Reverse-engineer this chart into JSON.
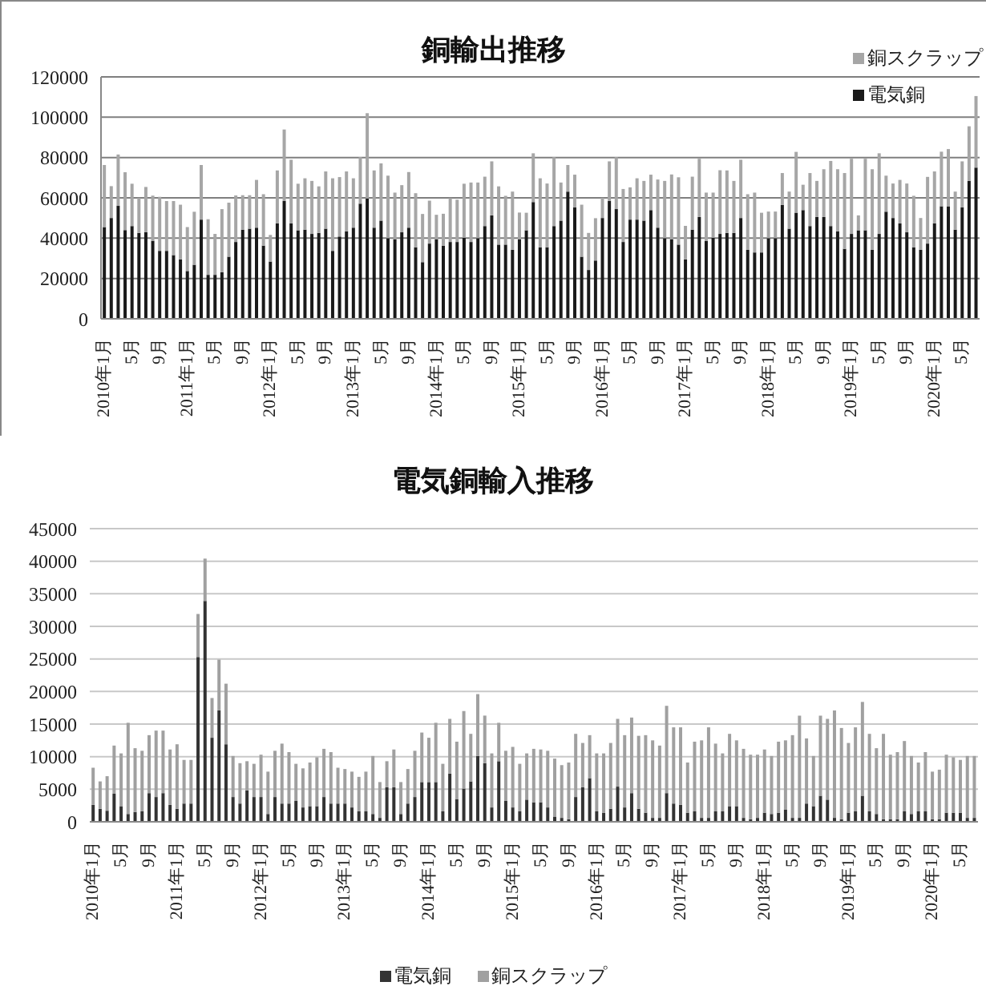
{
  "chart_data": [
    {
      "type": "bar",
      "title": "銅輸出推移",
      "stacked": true,
      "grid": "y",
      "legend": "top right",
      "ylim": [
        0,
        120000
      ],
      "yticks": [
        0,
        20000,
        40000,
        60000,
        80000,
        100000,
        120000
      ],
      "categories": [
        "2010年1月",
        null,
        null,
        null,
        "5月",
        null,
        null,
        null,
        "9月",
        null,
        null,
        null,
        "2011年1月",
        null,
        null,
        null,
        "5月",
        null,
        null,
        null,
        "9月",
        null,
        null,
        null,
        "2012年1月",
        null,
        null,
        null,
        "5月",
        null,
        null,
        null,
        "9月",
        null,
        null,
        null,
        "2013年1月",
        null,
        null,
        null,
        "5月",
        null,
        null,
        null,
        "9月",
        null,
        null,
        null,
        "2014年1月",
        null,
        null,
        null,
        "5月",
        null,
        null,
        null,
        "9月",
        null,
        null,
        null,
        "2015年1月",
        null,
        null,
        null,
        "5月",
        null,
        null,
        null,
        "9月",
        null,
        null,
        null,
        "2016年1月",
        null,
        null,
        null,
        "5月",
        null,
        null,
        null,
        "9月",
        null,
        null,
        null,
        "2017年1月",
        null,
        null,
        null,
        "5月",
        null,
        null,
        null,
        "9月",
        null,
        null,
        null,
        "2018年1月",
        null,
        null,
        null,
        "5月",
        null,
        null,
        null,
        "9月",
        null,
        null,
        null,
        "2019年1月",
        null,
        null,
        null,
        "5月",
        null,
        null,
        null,
        "9月",
        null,
        null,
        null,
        "2020年1月",
        null,
        null,
        null,
        "5月",
        null,
        null
      ],
      "series": [
        {
          "name": "電気銅",
          "color": "#1a1a1a",
          "values": [
            45500,
            50000,
            56000,
            44000,
            46000,
            42600,
            43000,
            38700,
            33700,
            33700,
            31600,
            29500,
            23700,
            26800,
            49200,
            21800,
            21800,
            23100,
            30800,
            38100,
            44200,
            44700,
            45200,
            36300,
            28400,
            47300,
            58400,
            47300,
            43900,
            44200,
            42100,
            42600,
            44700,
            33700,
            40800,
            43400,
            45200,
            57100,
            59700,
            45200,
            48700,
            40000,
            39500,
            42900,
            45200,
            35500,
            28100,
            37300,
            39500,
            36300,
            38100,
            38100,
            40200,
            38100,
            40000,
            46000,
            51300,
            36800,
            36800,
            34200,
            39500,
            43900,
            57900,
            35500,
            35500,
            46000,
            48700,
            63100,
            55200,
            30800,
            24200,
            28900,
            50000,
            58400,
            54400,
            38100,
            49200,
            49200,
            48700,
            53900,
            45200,
            40000,
            39500,
            36800,
            29500,
            44200,
            50500,
            38700,
            40200,
            42100,
            42600,
            42600,
            50000,
            34200,
            32900,
            32900,
            40000,
            40000,
            56500,
            44700,
            52600,
            53900,
            46000,
            50500,
            50500,
            46000,
            43400,
            34700,
            42100,
            43900,
            43900,
            34200,
            42100,
            53100,
            50000,
            47300,
            42900,
            35500,
            34200,
            37300,
            47300,
            55800,
            55800,
            44200,
            55200,
            68400,
            75000
          ]
        },
        {
          "name": "銅スクラップ",
          "color": "#a6a6a6",
          "values": [
            30800,
            15800,
            25500,
            28700,
            21000,
            17400,
            22400,
            22400,
            26800,
            24700,
            26800,
            27100,
            21800,
            26300,
            27100,
            27600,
            20300,
            31300,
            26800,
            23100,
            17100,
            16600,
            23700,
            25500,
            13200,
            26300,
            35500,
            31600,
            23100,
            25500,
            26300,
            23100,
            28400,
            36000,
            29500,
            29700,
            24500,
            23100,
            42300,
            28400,
            28400,
            31000,
            23100,
            23400,
            27600,
            26800,
            23900,
            21300,
            12100,
            15800,
            21800,
            21000,
            26800,
            29500,
            27600,
            24500,
            26800,
            28900,
            24200,
            28900,
            13200,
            8700,
            24200,
            34200,
            31600,
            34200,
            18900,
            13200,
            16300,
            25800,
            18400,
            21000,
            10000,
            19700,
            25800,
            26300,
            16000,
            20500,
            19700,
            17600,
            23900,
            28400,
            32100,
            33400,
            16600,
            26300,
            28900,
            23900,
            22400,
            31600,
            31000,
            25800,
            28900,
            27600,
            29700,
            19700,
            13200,
            13200,
            15800,
            18400,
            30200,
            12600,
            26300,
            17900,
            23700,
            32300,
            30800,
            37600,
            37300,
            7400,
            35500,
            40000,
            40000,
            17900,
            17100,
            21600,
            24200,
            25500,
            15800,
            33100,
            25800,
            27100,
            28400,
            18900,
            22900,
            27100,
            35500
          ]
        }
      ]
    },
    {
      "type": "bar",
      "title": "電気銅輸入推移",
      "stacked": true,
      "grid": "y",
      "legend": "bottom",
      "ylim": [
        0,
        45000
      ],
      "yticks": [
        0,
        5000,
        10000,
        15000,
        20000,
        25000,
        30000,
        35000,
        40000,
        45000
      ],
      "categories": [
        "2010年1月",
        null,
        null,
        null,
        "5月",
        null,
        null,
        null,
        "9月",
        null,
        null,
        null,
        "2011年1月",
        null,
        null,
        null,
        "5月",
        null,
        null,
        null,
        "9月",
        null,
        null,
        null,
        "2012年1月",
        null,
        null,
        null,
        "5月",
        null,
        null,
        null,
        "9月",
        null,
        null,
        null,
        "2013年1月",
        null,
        null,
        null,
        "5月",
        null,
        null,
        null,
        "9月",
        null,
        null,
        null,
        "2014年1月",
        null,
        null,
        null,
        "5月",
        null,
        null,
        null,
        "9月",
        null,
        null,
        null,
        "2015年1月",
        null,
        null,
        null,
        "5月",
        null,
        null,
        null,
        "9月",
        null,
        null,
        null,
        "2016年1月",
        null,
        null,
        null,
        "5月",
        null,
        null,
        null,
        "9月",
        null,
        null,
        null,
        "2017年1月",
        null,
        null,
        null,
        "5月",
        null,
        null,
        null,
        "9月",
        null,
        null,
        null,
        "2018年1月",
        null,
        null,
        null,
        "5月",
        null,
        null,
        null,
        "9月",
        null,
        null,
        null,
        "2019年1月",
        null,
        null,
        null,
        "5月",
        null,
        null,
        null,
        "9月",
        null,
        null,
        null,
        "2020年1月",
        null,
        null,
        null,
        "5月",
        null,
        null
      ],
      "series": [
        {
          "name": "電気銅",
          "color": "#333333",
          "values": [
            2600,
            2000,
            1700,
            4300,
            2400,
            1200,
            1500,
            1600,
            4400,
            3800,
            4400,
            2600,
            2000,
            2800,
            2800,
            25300,
            33900,
            12900,
            17100,
            11900,
            3800,
            2800,
            4800,
            3800,
            3800,
            1200,
            3800,
            2800,
            2800,
            3200,
            2200,
            2400,
            2400,
            3800,
            2800,
            2800,
            2800,
            2200,
            1600,
            1600,
            1200,
            600,
            5300,
            5300,
            1200,
            2800,
            3800,
            6100,
            6100,
            6100,
            1600,
            7400,
            3500,
            5100,
            6200,
            10100,
            9000,
            2200,
            9300,
            3200,
            2200,
            1600,
            3400,
            3000,
            3000,
            2200,
            800,
            600,
            400,
            3800,
            5300,
            6700,
            1600,
            1400,
            2000,
            5400,
            2200,
            4400,
            2000,
            1400,
            600,
            600,
            4400,
            2800,
            2600,
            1400,
            1600,
            600,
            600,
            1600,
            1600,
            2400,
            2400,
            600,
            400,
            600,
            1400,
            1200,
            1400,
            1900,
            600,
            600,
            2800,
            2400,
            4000,
            3400,
            600,
            400,
            1400,
            1600,
            4000,
            1600,
            1200,
            400,
            400,
            400,
            1600,
            1200,
            1600,
            1600,
            400,
            400,
            1400,
            1400,
            1400,
            600,
            600
          ]
        },
        {
          "name": "銅スクラップ",
          "color": "#a0a0a0",
          "values": [
            5700,
            4200,
            5300,
            7400,
            8100,
            14000,
            9800,
            9300,
            8900,
            10200,
            9600,
            8500,
            9900,
            6700,
            6700,
            6600,
            6500,
            6100,
            7800,
            9300,
            6300,
            6200,
            4500,
            5100,
            6500,
            6500,
            7100,
            9200,
            7900,
            5700,
            6000,
            6700,
            7500,
            7400,
            7900,
            5500,
            5300,
            5500,
            5300,
            6100,
            8900,
            5500,
            4000,
            5800,
            4900,
            5300,
            7100,
            7600,
            6800,
            9100,
            7300,
            8400,
            8800,
            11900,
            7300,
            9500,
            7300,
            8300,
            5900,
            7700,
            9300,
            7300,
            7100,
            8200,
            8100,
            8700,
            8900,
            8100,
            8700,
            9700,
            6800,
            6600,
            8900,
            9100,
            10100,
            10400,
            11100,
            11600,
            11200,
            11900,
            11900,
            11100,
            13400,
            11700,
            11900,
            7700,
            10700,
            11900,
            13900,
            10400,
            8900,
            11100,
            10100,
            10600,
            9900,
            9700,
            9700,
            8900,
            10900,
            10600,
            12700,
            15700,
            10000,
            7700,
            12300,
            12400,
            16500,
            14000,
            10700,
            12900,
            14400,
            11900,
            10100,
            13100,
            9900,
            10300,
            10800,
            8900,
            7500,
            9100,
            7300,
            7600,
            8900,
            8500,
            8100,
            9500,
            9500
          ]
        }
      ]
    }
  ]
}
